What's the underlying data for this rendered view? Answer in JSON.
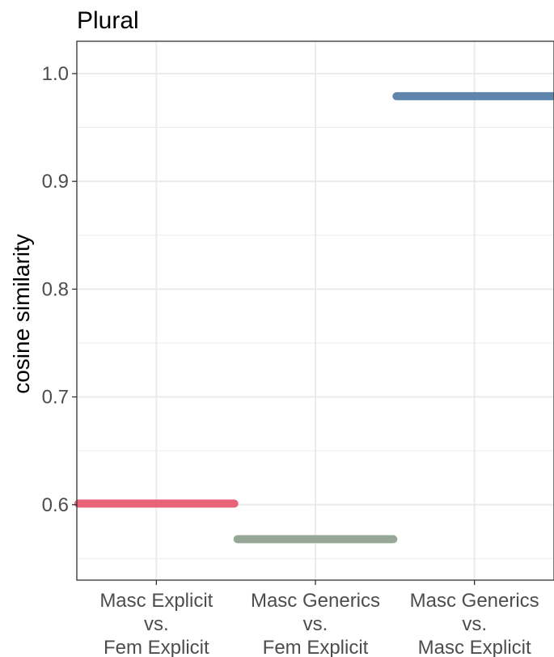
{
  "chart_data": {
    "type": "range",
    "title": "Plural",
    "xlabel": "",
    "ylabel": "cosine similarity",
    "ylim": [
      0.53,
      1.03
    ],
    "y_ticks": [
      "0.6",
      "0.7",
      "0.8",
      "0.9",
      "1.0"
    ],
    "grid": true,
    "categories": [
      [
        "Masc Explicit",
        "vs.",
        "Fem Explicit"
      ],
      [
        "Masc Generics",
        "vs.",
        "Fem Explicit"
      ],
      [
        "Masc Generics",
        "vs.",
        "Masc Explicit"
      ]
    ],
    "values": [
      0.601,
      0.568,
      0.979
    ],
    "colors": [
      "#e8627a",
      "#96a895",
      "#5f85ad"
    ]
  }
}
